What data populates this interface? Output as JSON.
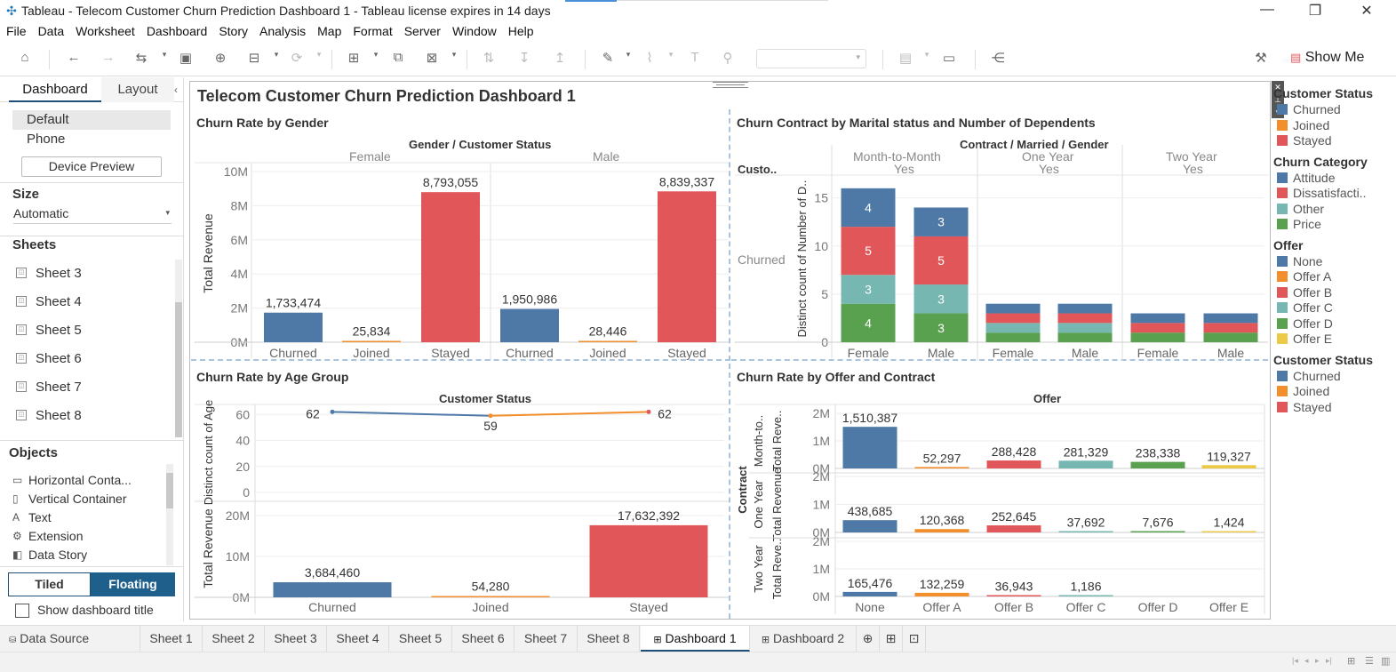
{
  "window": {
    "title": "Tableau - Telecom Customer Churn Prediction Dashboard 1 - Tableau license expires in 14 days"
  },
  "menu": [
    "File",
    "Data",
    "Worksheet",
    "Dashboard",
    "Story",
    "Analysis",
    "Map",
    "Format",
    "Server",
    "Window",
    "Help"
  ],
  "toolbar": {
    "show_me": "Show Me"
  },
  "left_pane": {
    "tab_dashboard": "Dashboard",
    "tab_layout": "Layout",
    "devices": [
      "Default",
      "Phone"
    ],
    "device_preview": "Device Preview",
    "size_header": "Size",
    "size_value": "Automatic",
    "sheets_header": "Sheets",
    "sheets": [
      "Sheet 3",
      "Sheet 4",
      "Sheet 5",
      "Sheet 6",
      "Sheet 7",
      "Sheet 8"
    ],
    "objects_header": "Objects",
    "objects": [
      "Horizontal Conta...",
      "Vertical Container",
      "Text",
      "Extension",
      "Data Story"
    ],
    "tiled": "Tiled",
    "floating": "Floating",
    "show_title": "Show dashboard title"
  },
  "dashboard": {
    "title": "Telecom Customer Churn Prediction Dashboard 1"
  },
  "colors": {
    "blue": "#4e79a7",
    "orange": "#f28e2b",
    "red": "#e15759",
    "teal": "#76b7b2",
    "green": "#59a14f",
    "yellow": "#edc948"
  },
  "chart_data": [
    {
      "type": "bar",
      "title": "Churn Rate by Gender",
      "header": "Gender / Customer Status",
      "ylabel": "Total Revenue",
      "ylim": [
        0,
        10000000
      ],
      "yticks": [
        "0M",
        "2M",
        "4M",
        "6M",
        "8M",
        "10M"
      ],
      "groups": [
        "Female",
        "Male"
      ],
      "categories": [
        "Churned",
        "Joined",
        "Stayed"
      ],
      "series": [
        {
          "group": "Female",
          "values": [
            1733474,
            25834,
            8793055
          ],
          "labels": [
            "1,733,474",
            "25,834",
            "8,793,055"
          ]
        },
        {
          "group": "Male",
          "values": [
            1950986,
            28446,
            8839337
          ],
          "labels": [
            "1,950,986",
            "28,446",
            "8,839,337"
          ]
        }
      ]
    },
    {
      "type": "bar",
      "stacked": true,
      "title": "Churn Contract by Marital status and Number of Dependents",
      "header": "Contract / Married / Gender",
      "row_header": "Custo..",
      "row_label": "Churned",
      "ylabel": "Distinct count of Number of D..",
      "ylim": [
        0,
        17
      ],
      "yticks": [
        "0",
        "5",
        "10",
        "15"
      ],
      "groups": [
        {
          "contract": "Month-to-Month",
          "married": "Yes"
        },
        {
          "contract": "One Year",
          "married": "Yes"
        },
        {
          "contract": "Two Year",
          "married": "Yes"
        }
      ],
      "categories": [
        "Female",
        "Male",
        "Female",
        "Male",
        "Female",
        "Male"
      ],
      "series": [
        {
          "name": "Price",
          "values": [
            4,
            3,
            1,
            1,
            1,
            1
          ],
          "labels": [
            "4",
            "3",
            "",
            "",
            "",
            ""
          ]
        },
        {
          "name": "Other",
          "values": [
            3,
            3,
            1,
            1,
            0,
            0
          ],
          "labels": [
            "3",
            "3",
            "",
            "",
            "",
            ""
          ]
        },
        {
          "name": "Dissatisfaction",
          "values": [
            5,
            5,
            1,
            1,
            1,
            1
          ],
          "labels": [
            "5",
            "5",
            "",
            "",
            "",
            ""
          ]
        },
        {
          "name": "Attitude",
          "values": [
            4,
            3,
            1,
            1,
            1,
            1
          ],
          "labels": [
            "4",
            "3",
            "",
            "",
            "",
            ""
          ]
        }
      ]
    },
    {
      "type": "line",
      "title": "Churn Rate by Age Group",
      "header": "Customer Status",
      "ylabel": "Distinct count of Age",
      "ylim": [
        0,
        65
      ],
      "yticks": [
        "0",
        "20",
        "40",
        "60"
      ],
      "categories": [
        "Churned",
        "Joined",
        "Stayed"
      ],
      "values": [
        62,
        59,
        62
      ]
    },
    {
      "type": "bar",
      "ylabel": "Total Revenue",
      "ylim": [
        0,
        20000000
      ],
      "yticks": [
        "0M",
        "10M",
        "20M"
      ],
      "categories": [
        "Churned",
        "Joined",
        "Stayed"
      ],
      "values": [
        3684460,
        54280,
        17632392
      ],
      "labels": [
        "3,684,460",
        "54,280",
        "17,632,392"
      ]
    },
    {
      "type": "bar",
      "title": "Churn Rate by Offer and Contract",
      "header": "Offer",
      "row_header": "Contract",
      "categories": [
        "None",
        "Offer A",
        "Offer B",
        "Offer C",
        "Offer D",
        "Offer E"
      ],
      "ylim": [
        0,
        2000000
      ],
      "yticks": [
        "0M",
        "1M",
        "2M"
      ],
      "rows": [
        {
          "contract": "Month-to..",
          "ylabel": "Total Reve..",
          "values": [
            1510387,
            52297,
            288428,
            281329,
            238338,
            119327
          ],
          "labels": [
            "1,510,387",
            "52,297",
            "288,428",
            "281,329",
            "238,338",
            "119,327"
          ]
        },
        {
          "contract": "One Year",
          "ylabel": "Total Revenue",
          "values": [
            438685,
            120368,
            252645,
            37692,
            7676,
            1424
          ],
          "labels": [
            "438,685",
            "120,368",
            "252,645",
            "37,692",
            "7,676",
            "1,424"
          ]
        },
        {
          "contract": "Two Year",
          "ylabel": "Total Reve..",
          "values": [
            165476,
            132259,
            36943,
            1186,
            0,
            0
          ],
          "labels": [
            "165,476",
            "132,259",
            "36,943",
            "1,186",
            "",
            ""
          ]
        }
      ]
    }
  ],
  "legends": [
    {
      "title": "Customer Status",
      "items": [
        {
          "label": "Churned",
          "color": "#4e79a7"
        },
        {
          "label": "Joined",
          "color": "#f28e2b"
        },
        {
          "label": "Stayed",
          "color": "#e15759"
        }
      ]
    },
    {
      "title": "Churn Category",
      "items": [
        {
          "label": "Attitude",
          "color": "#4e79a7"
        },
        {
          "label": "Dissatisfacti..",
          "color": "#e15759"
        },
        {
          "label": "Other",
          "color": "#76b7b2"
        },
        {
          "label": "Price",
          "color": "#59a14f"
        }
      ]
    },
    {
      "title": "Offer",
      "items": [
        {
          "label": "None",
          "color": "#4e79a7"
        },
        {
          "label": "Offer A",
          "color": "#f28e2b"
        },
        {
          "label": "Offer B",
          "color": "#e15759"
        },
        {
          "label": "Offer C",
          "color": "#76b7b2"
        },
        {
          "label": "Offer D",
          "color": "#59a14f"
        },
        {
          "label": "Offer E",
          "color": "#edc948"
        }
      ]
    },
    {
      "title": "Customer Status",
      "items": [
        {
          "label": "Churned",
          "color": "#4e79a7"
        },
        {
          "label": "Joined",
          "color": "#f28e2b"
        },
        {
          "label": "Stayed",
          "color": "#e15759"
        }
      ]
    }
  ],
  "sheet_tabs": {
    "data_source": "Data Source",
    "tabs": [
      "Sheet 1",
      "Sheet 2",
      "Sheet 3",
      "Sheet 4",
      "Sheet 5",
      "Sheet 6",
      "Sheet 7",
      "Sheet 8",
      "Dashboard 1",
      "Dashboard 2"
    ],
    "active": "Dashboard 1"
  }
}
